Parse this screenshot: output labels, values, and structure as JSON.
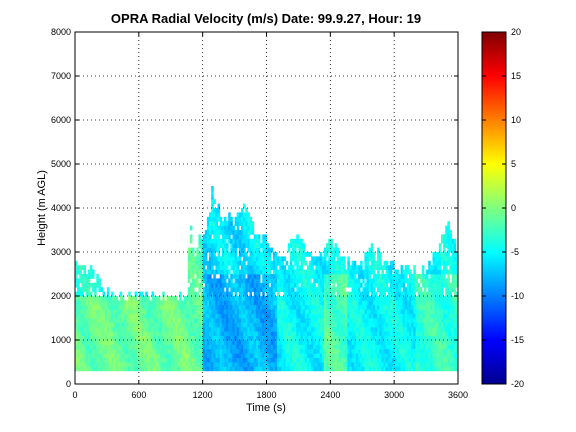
{
  "chart_data": {
    "type": "heatmap",
    "title": "OPRA Radial Velocity (m/s)  Date: 99.9.27, Hour: 19",
    "xlabel": "Time (s)",
    "ylabel": "Height (m AGL)",
    "xlim": [
      0,
      3600
    ],
    "ylim": [
      0,
      8000
    ],
    "x_ticks": [
      "0",
      "600",
      "1200",
      "1800",
      "2400",
      "3000",
      "3600"
    ],
    "y_ticks": [
      "0",
      "1000",
      "2000",
      "3000",
      "4000",
      "5000",
      "6000",
      "7000",
      "8000"
    ],
    "grid": true,
    "colorbar": {
      "colormap": "jet",
      "range": [
        -20,
        20
      ],
      "ticks": [
        "20",
        "15",
        "10",
        "5",
        "0",
        "-5",
        "-10",
        "-15",
        "-20"
      ]
    },
    "echo_bottom_height": 300,
    "echo_top_profile": {
      "time": [
        0,
        60,
        120,
        300,
        600,
        900,
        1050,
        1080,
        1120,
        1150,
        1260,
        1290,
        1320,
        1380,
        1500,
        1620,
        1700,
        1800,
        1950,
        2050,
        2100,
        2150,
        2300,
        2400,
        2500,
        2550,
        2700,
        2800,
        2900,
        3050,
        3200,
        3300,
        3400,
        3500,
        3550,
        3590
      ],
      "height": [
        2700,
        2700,
        2600,
        2000,
        1950,
        1950,
        1950,
        3700,
        3000,
        3100,
        3700,
        4500,
        4100,
        3900,
        3700,
        4000,
        3400,
        3200,
        2800,
        3200,
        3400,
        3100,
        2800,
        3200,
        3000,
        2700,
        2700,
        3100,
        2800,
        2600,
        2500,
        2600,
        3000,
        3700,
        3400,
        3000
      ]
    },
    "velocity_regions": [
      {
        "time_range": [
          0,
          1200
        ],
        "height_range": [
          300,
          2000
        ],
        "velocity": -1
      },
      {
        "time_range": [
          900,
          1200
        ],
        "height_range": [
          2000,
          3700
        ],
        "velocity": -2
      },
      {
        "time_range": [
          1200,
          1900
        ],
        "height_range": [
          300,
          2500
        ],
        "velocity": -8
      },
      {
        "time_range": [
          1200,
          1900
        ],
        "height_range": [
          2500,
          4500
        ],
        "velocity": -6
      },
      {
        "time_range": [
          1900,
          3600
        ],
        "height_range": [
          300,
          3400
        ],
        "velocity": -5
      },
      {
        "time_range": [
          2350,
          2550
        ],
        "height_range": [
          300,
          2500
        ],
        "velocity": -2
      },
      {
        "time_range": [
          3200,
          3600
        ],
        "height_range": [
          300,
          2500
        ],
        "velocity": -3
      }
    ]
  }
}
